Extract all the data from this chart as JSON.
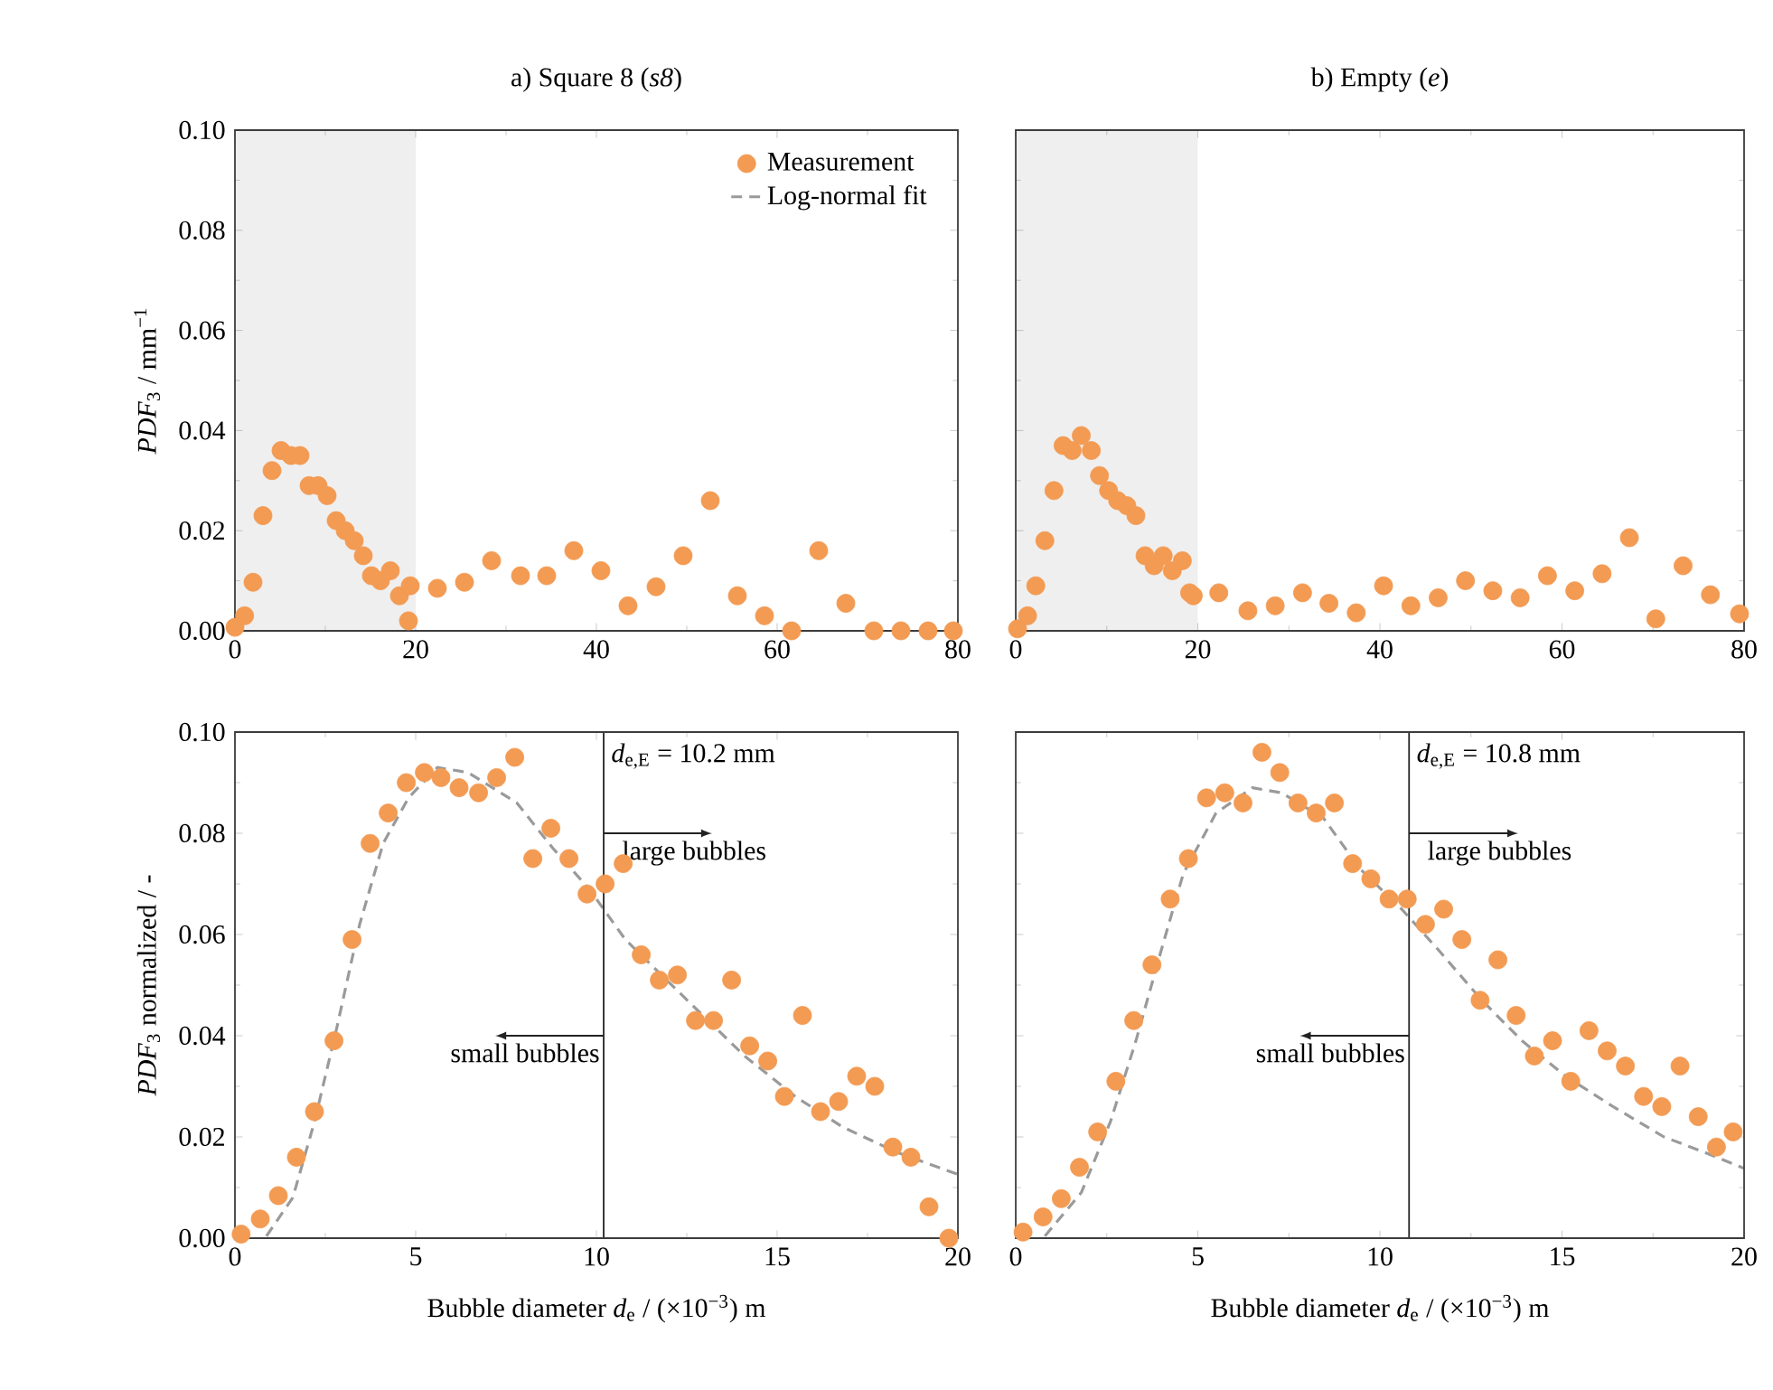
{
  "chart_data": [
    {
      "type": "scatter",
      "title": "a) Square 8 (*s8*)",
      "ylabel": "*PDF*$_{3}$ / mm$^{−1}$",
      "xlim": [
        0,
        80
      ],
      "ylim": [
        0,
        0.1
      ],
      "xticks": [
        0,
        20,
        40,
        60,
        80
      ],
      "yticks": [
        {
          "value": 0,
          "label": "0.00"
        },
        {
          "value": 0.02,
          "label": "0.02"
        },
        {
          "value": 0.04,
          "label": "0.04"
        },
        {
          "value": 0.06,
          "label": "0.06"
        },
        {
          "value": 0.08,
          "label": "0.08"
        },
        {
          "value": 0.1,
          "label": "0.10"
        }
      ],
      "bands": [
        {
          "axis": "x",
          "from": 0,
          "to": 20,
          "color": "#efefef"
        }
      ],
      "legend": "top right",
      "series": [
        {
          "name": "Measurement",
          "marker": "circle",
          "color": "#f39a53",
          "x": [
            0,
            1.07,
            2.0,
            3.1,
            4.1,
            5.1,
            6.2,
            7.2,
            8.2,
            9.2,
            10.2,
            11.2,
            12.2,
            13.2,
            14.2,
            15.1,
            16.1,
            17.2,
            18.2,
            19.2,
            19.4,
            22.4,
            25.4,
            28.4,
            31.6,
            34.5,
            37.5,
            40.5,
            43.5,
            46.6,
            49.6,
            52.6,
            55.6,
            58.6,
            61.6,
            64.6,
            67.6,
            70.7,
            73.7,
            76.7,
            79.5
          ],
          "values": [
            0.0007,
            0.003,
            0.0097,
            0.023,
            0.032,
            0.036,
            0.035,
            0.035,
            0.029,
            0.029,
            0.027,
            0.022,
            0.02,
            0.018,
            0.015,
            0.011,
            0.01,
            0.012,
            0.007,
            0.002,
            0.009,
            0.0085,
            0.0097,
            0.014,
            0.011,
            0.011,
            0.016,
            0.012,
            0.005,
            0.0088,
            0.015,
            0.026,
            0.007,
            0.003,
            0,
            0.016,
            0.0055,
            0,
            0,
            0,
            0
          ]
        }
      ]
    },
    {
      "type": "scatter",
      "title": "b) Empty (*e*)",
      "xlim": [
        0,
        80
      ],
      "ylim": [
        0,
        0.1
      ],
      "xticks": [
        0,
        20,
        40,
        60,
        80
      ],
      "yticks": [
        0,
        0.02,
        0.04,
        0.06,
        0.08,
        0.1
      ],
      "tick_labels": "x",
      "bands": [
        {
          "axis": "x",
          "from": 0,
          "to": 20,
          "color": "#efefef"
        }
      ],
      "series": [
        {
          "marker": "circle",
          "color": "#f39a53",
          "x": [
            0.2,
            1.3,
            2.2,
            3.2,
            4.2,
            5.2,
            6.2,
            7.2,
            8.3,
            9.2,
            10.2,
            11.2,
            12.2,
            13.2,
            14.2,
            15.2,
            16.2,
            17.2,
            18.3,
            19.1,
            19.5,
            22.3,
            25.5,
            28.5,
            31.5,
            34.4,
            37.4,
            40.4,
            43.4,
            46.4,
            49.4,
            52.4,
            55.4,
            58.4,
            61.4,
            64.4,
            67.4,
            70.3,
            73.3,
            76.3,
            79.5
          ],
          "values": [
            0.0004,
            0.003,
            0.009,
            0.018,
            0.028,
            0.037,
            0.036,
            0.039,
            0.036,
            0.031,
            0.028,
            0.026,
            0.025,
            0.023,
            0.015,
            0.013,
            0.015,
            0.012,
            0.014,
            0.0076,
            0.007,
            0.0076,
            0.004,
            0.005,
            0.0076,
            0.0055,
            0.0036,
            0.009,
            0.005,
            0.0066,
            0.01,
            0.008,
            0.0066,
            0.011,
            0.008,
            0.0114,
            0.0186,
            0.0024,
            0.013,
            0.0072,
            0.0034
          ]
        }
      ]
    },
    {
      "type": "scatter",
      "xlabel": "Bubble diameter *d*$_{e}$ / (×10$^{−3}$) m",
      "ylabel": "*PDF*$_{3}$ normalized / -",
      "xlim": [
        0,
        20
      ],
      "ylim": [
        0,
        0.1
      ],
      "xticks": [
        0,
        5,
        10,
        15,
        20
      ],
      "yticks": [
        {
          "value": 0,
          "label": "0.00"
        },
        {
          "value": 0.02,
          "label": "0.02"
        },
        {
          "value": 0.04,
          "label": "0.04"
        },
        {
          "value": 0.06,
          "label": "0.06"
        },
        {
          "value": 0.08,
          "label": "0.08"
        },
        {
          "value": 0.1,
          "label": "0.10"
        }
      ],
      "ref_lines": [
        {
          "axis": "x",
          "value": 10.2,
          "label": "*d*$_{e,E}$ = 10.2 mm",
          "color": "#222222"
        }
      ],
      "annotations": [
        "large bubbles",
        "small bubbles"
      ],
      "series": [
        {
          "marker": "circle",
          "color": "#f39a53",
          "x": [
            0.17,
            0.7,
            1.2,
            1.7,
            2.2,
            2.74,
            3.24,
            3.74,
            4.24,
            4.74,
            5.24,
            5.7,
            6.2,
            6.74,
            7.24,
            7.74,
            8.24,
            8.74,
            9.24,
            9.74,
            10.24,
            10.74,
            11.24,
            11.74,
            12.24,
            12.74,
            13.24,
            13.74,
            14.24,
            14.74,
            15.2,
            15.7,
            16.2,
            16.7,
            17.2,
            17.7,
            18.2,
            18.7,
            19.2,
            19.75
          ],
          "values": [
            0.0008,
            0.0038,
            0.0084,
            0.016,
            0.025,
            0.039,
            0.059,
            0.078,
            0.084,
            0.09,
            0.092,
            0.091,
            0.089,
            0.088,
            0.091,
            0.095,
            0.075,
            0.081,
            0.075,
            0.068,
            0.07,
            0.074,
            0.056,
            0.051,
            0.052,
            0.043,
            0.043,
            0.051,
            0.038,
            0.035,
            0.028,
            0.044,
            0.025,
            0.027,
            0.032,
            0.03,
            0.018,
            0.016,
            0.0062,
            0
          ]
        },
        {
          "name": "Log-normal fit",
          "type": "line",
          "marker": "none",
          "line_style": "dashed",
          "color": "#9a9a9a",
          "x": [
            0.87,
            1.6,
            2.2,
            2.8,
            3.45,
            4.1,
            4.8,
            5.6,
            6.45,
            7.8,
            8.8,
            9.8,
            10.8,
            11.8,
            12.8,
            14.1,
            15.5,
            16.8,
            18.3,
            20
          ],
          "values": [
            0.0004,
            0.008,
            0.023,
            0.041,
            0.062,
            0.078,
            0.087,
            0.093,
            0.092,
            0.086,
            0.077,
            0.069,
            0.059,
            0.052,
            0.045,
            0.036,
            0.028,
            0.022,
            0.017,
            0.0126
          ]
        }
      ]
    },
    {
      "type": "scatter",
      "xlabel": "Bubble diameter *d*$_{e}$ / (×10$^{−3}$) m",
      "xlim": [
        0,
        20
      ],
      "ylim": [
        0,
        0.1
      ],
      "xticks": [
        0,
        5,
        10,
        15,
        20
      ],
      "yticks": [
        0,
        0.02,
        0.04,
        0.06,
        0.08,
        0.1
      ],
      "tick_labels": "x",
      "ref_lines": [
        {
          "axis": "x",
          "value": 10.8,
          "label": "*d*$_{e,E}$ = 10.8 mm",
          "color": "#222222"
        }
      ],
      "annotations": [
        "large bubbles",
        "small bubbles"
      ],
      "series": [
        {
          "marker": "circle",
          "color": "#f39a53",
          "x": [
            0.2,
            0.75,
            1.25,
            1.75,
            2.25,
            2.75,
            3.24,
            3.74,
            4.24,
            4.74,
            5.24,
            5.74,
            6.24,
            6.76,
            7.25,
            7.75,
            8.25,
            8.75,
            9.25,
            9.75,
            10.25,
            10.75,
            11.25,
            11.75,
            12.25,
            12.75,
            13.24,
            13.74,
            14.24,
            14.74,
            15.24,
            15.74,
            16.24,
            16.74,
            17.24,
            17.74,
            18.24,
            18.74,
            19.24,
            19.7
          ],
          "values": [
            0.0012,
            0.0042,
            0.0078,
            0.014,
            0.021,
            0.031,
            0.043,
            0.054,
            0.067,
            0.075,
            0.087,
            0.088,
            0.086,
            0.096,
            0.092,
            0.086,
            0.084,
            0.086,
            0.074,
            0.071,
            0.067,
            0.067,
            0.062,
            0.065,
            0.059,
            0.047,
            0.055,
            0.044,
            0.036,
            0.039,
            0.031,
            0.041,
            0.037,
            0.034,
            0.028,
            0.026,
            0.034,
            0.024,
            0.018,
            0.021
          ]
        },
        {
          "type": "line",
          "marker": "none",
          "line_style": "dashed",
          "color": "#9a9a9a",
          "x": [
            0.8,
            1.8,
            2.6,
            3.3,
            4.0,
            4.6,
            5.5,
            6.5,
            7.3,
            8.45,
            9.45,
            10.6,
            11.6,
            12.8,
            13.9,
            15.1,
            16.4,
            17.8,
            18.9,
            20
          ],
          "values": [
            0.0004,
            0.009,
            0.023,
            0.039,
            0.057,
            0.072,
            0.084,
            0.089,
            0.088,
            0.083,
            0.073,
            0.065,
            0.057,
            0.047,
            0.039,
            0.032,
            0.026,
            0.02,
            0.017,
            0.0138
          ]
        }
      ]
    }
  ]
}
